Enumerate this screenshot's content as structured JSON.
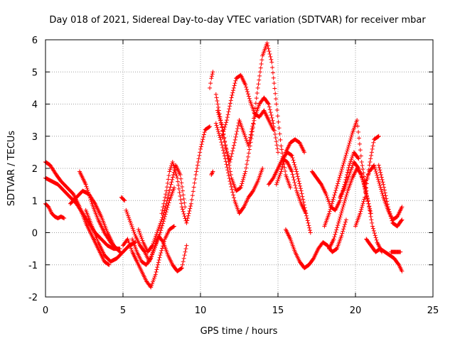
{
  "chart_data": {
    "type": "scatter",
    "title": "Day 018 of 2021, Sidereal Day-to-day VTEC variation (SDTVAR) for receiver mbar",
    "xlabel": "GPS time / hours",
    "ylabel": "SDTVAR / TECUs",
    "xlim": [
      0,
      25
    ],
    "ylim": [
      -2,
      6
    ],
    "xticks": [
      0,
      5,
      10,
      15,
      20,
      25
    ],
    "xtick_labels": [
      "0",
      "5",
      "10",
      "15",
      "20",
      "25"
    ],
    "yticks": [
      -2,
      -1,
      0,
      1,
      2,
      3,
      4,
      5,
      6
    ],
    "ytick_labels": [
      "-2",
      "-1",
      "0",
      "1",
      "2",
      "3",
      "4",
      "5",
      "6"
    ],
    "grid": true,
    "legend": "none",
    "marker": "+",
    "marker_color": "#ff0000",
    "series": [
      {
        "name": "track-01",
        "x": [
          0.0,
          0.3,
          0.7,
          1.0,
          1.4,
          1.8,
          2.2,
          2.6,
          3.0,
          3.4,
          3.8,
          4.1
        ],
        "y": [
          2.2,
          2.1,
          1.8,
          1.6,
          1.4,
          1.2,
          0.8,
          0.3,
          -0.1,
          -0.5,
          -0.9,
          -1.0
        ]
      },
      {
        "name": "track-02",
        "x": [
          0.0,
          0.2,
          0.4,
          0.6,
          0.8,
          1.0,
          1.2
        ],
        "y": [
          0.9,
          0.8,
          0.6,
          0.5,
          0.45,
          0.5,
          0.45
        ]
      },
      {
        "name": "track-03",
        "x": [
          0.0,
          0.4,
          0.8,
          1.2,
          1.6,
          2.0,
          2.4,
          2.8,
          3.2,
          3.6,
          4.0,
          4.4,
          4.8
        ],
        "y": [
          1.7,
          1.6,
          1.5,
          1.3,
          1.1,
          0.9,
          0.6,
          0.3,
          0.0,
          -0.2,
          -0.4,
          -0.5,
          -0.5
        ]
      },
      {
        "name": "track-04",
        "x": [
          1.6,
          2.0,
          2.4,
          2.8,
          3.2,
          3.6,
          4.0,
          4.4,
          4.8
        ],
        "y": [
          0.9,
          1.1,
          1.3,
          1.2,
          0.9,
          0.5,
          0.0,
          -0.4,
          -0.6
        ]
      },
      {
        "name": "track-05",
        "x": [
          2.2,
          2.6,
          3.0,
          3.4,
          3.8,
          4.2,
          4.6
        ],
        "y": [
          1.9,
          1.5,
          0.9,
          0.4,
          0.0,
          -0.3,
          -0.5
        ]
      },
      {
        "name": "track-06",
        "x": [
          2.6,
          3.0,
          3.4,
          3.8,
          4.2,
          4.6,
          5.0,
          5.4,
          5.8
        ],
        "y": [
          0.7,
          0.2,
          -0.3,
          -0.7,
          -0.9,
          -0.8,
          -0.6,
          -0.4,
          -0.3
        ]
      },
      {
        "name": "track-07",
        "x": [
          4.9,
          5.1
        ],
        "y": [
          1.1,
          1.0
        ]
      },
      {
        "name": "track-08",
        "x": [
          5.0,
          5.3,
          5.6,
          5.9,
          6.2,
          6.5,
          6.8,
          7.1,
          7.4,
          7.7,
          8.0,
          8.3
        ],
        "y": [
          -0.4,
          -0.2,
          -0.6,
          -0.9,
          -1.2,
          -1.5,
          -1.7,
          -1.3,
          -0.7,
          -0.2,
          0.1,
          0.2
        ]
      },
      {
        "name": "track-09",
        "x": [
          5.2,
          5.5,
          5.8,
          6.1,
          6.4,
          6.7,
          7.0,
          7.3,
          7.6,
          7.9,
          8.2,
          8.5,
          8.8,
          9.1
        ],
        "y": [
          0.7,
          0.3,
          -0.1,
          -0.4,
          -0.6,
          -0.9,
          -0.5,
          -0.1,
          -0.3,
          -0.7,
          -1.0,
          -1.2,
          -1.1,
          -0.4
        ]
      },
      {
        "name": "track-10",
        "x": [
          5.6,
          5.9,
          6.2,
          6.5,
          6.8,
          7.1,
          7.4,
          7.7,
          8.0,
          8.3
        ],
        "y": [
          -0.2,
          -0.6,
          -0.9,
          -1.0,
          -0.8,
          -0.4,
          0.0,
          0.5,
          1.0,
          1.4
        ]
      },
      {
        "name": "track-11",
        "x": [
          6.0,
          6.3,
          6.6,
          6.9,
          7.2,
          7.5,
          7.8,
          8.1,
          8.4,
          8.7,
          9.0
        ],
        "y": [
          0.1,
          -0.3,
          -0.6,
          -0.4,
          0.0,
          0.4,
          0.9,
          1.5,
          2.1,
          1.8,
          0.8
        ]
      },
      {
        "name": "track-12",
        "x": [
          7.5,
          7.8,
          8.0,
          8.2,
          8.5,
          8.8,
          9.1,
          9.4,
          9.7,
          10.0,
          10.3,
          10.6
        ],
        "y": [
          0.6,
          1.3,
          1.9,
          2.2,
          1.7,
          0.8,
          0.3,
          0.9,
          1.8,
          2.6,
          3.2,
          3.3
        ]
      },
      {
        "name": "track-13",
        "x": [
          10.6,
          10.7,
          10.8
        ],
        "y": [
          4.5,
          4.8,
          5.0
        ]
      },
      {
        "name": "track-14",
        "x": [
          10.7,
          10.8
        ],
        "y": [
          1.8,
          1.9
        ]
      },
      {
        "name": "track-15",
        "x": [
          11.0,
          11.3,
          11.6,
          11.9,
          12.2,
          12.5,
          12.8,
          13.1,
          13.4,
          13.7,
          14.0,
          14.3,
          14.6,
          14.9,
          15.2,
          15.5,
          15.8
        ],
        "y": [
          4.3,
          3.5,
          2.7,
          2.2,
          2.8,
          3.5,
          3.1,
          2.7,
          3.4,
          4.5,
          5.5,
          5.9,
          5.3,
          4.0,
          2.7,
          1.8,
          1.4
        ]
      },
      {
        "name": "track-16",
        "x": [
          11.0,
          11.3,
          11.6,
          11.9,
          12.2,
          12.5,
          12.8,
          13.1,
          13.4,
          13.7,
          14.0
        ],
        "y": [
          3.4,
          2.9,
          2.3,
          1.6,
          1.0,
          0.6,
          0.8,
          1.1,
          1.3,
          1.6,
          2.0
        ]
      },
      {
        "name": "track-17",
        "x": [
          11.1,
          11.4,
          11.7,
          12.0,
          12.3,
          12.6,
          12.9,
          13.2,
          13.5,
          13.8,
          14.1,
          14.4,
          14.7,
          15.0
        ],
        "y": [
          3.8,
          3.3,
          2.5,
          1.7,
          1.3,
          1.4,
          1.9,
          2.7,
          3.6,
          4.0,
          4.2,
          4.0,
          3.4,
          2.5
        ]
      },
      {
        "name": "track-18",
        "x": [
          11.4,
          11.7,
          12.0,
          12.3,
          12.6,
          12.9,
          13.2,
          13.5,
          13.8,
          14.1,
          14.4,
          14.7
        ],
        "y": [
          3.0,
          3.5,
          4.2,
          4.8,
          4.9,
          4.6,
          4.1,
          3.7,
          3.6,
          3.8,
          3.5,
          3.2
        ]
      },
      {
        "name": "track-19",
        "x": [
          14.4,
          14.7,
          15.0,
          15.3,
          15.6,
          15.9,
          16.2,
          16.5,
          16.8
        ],
        "y": [
          1.5,
          1.7,
          2.0,
          2.3,
          2.2,
          1.9,
          1.3,
          0.9,
          0.6
        ]
      },
      {
        "name": "track-20",
        "x": [
          14.9,
          15.2,
          15.5,
          15.8,
          16.1,
          16.4,
          16.7
        ],
        "y": [
          1.5,
          1.9,
          2.5,
          2.8,
          2.9,
          2.8,
          2.5
        ]
      },
      {
        "name": "track-21",
        "x": [
          15.3,
          15.6,
          15.9,
          16.2,
          16.5,
          16.8,
          17.1
        ],
        "y": [
          2.3,
          2.5,
          2.4,
          1.9,
          1.3,
          0.6,
          0.0
        ]
      },
      {
        "name": "track-22",
        "x": [
          15.5,
          15.8,
          16.1,
          16.4,
          16.7,
          17.0,
          17.3,
          17.6,
          17.9,
          18.2,
          18.5,
          18.8,
          19.1,
          19.4
        ],
        "y": [
          0.1,
          -0.2,
          -0.6,
          -0.9,
          -1.1,
          -1.0,
          -0.8,
          -0.5,
          -0.3,
          -0.4,
          -0.6,
          -0.5,
          -0.1,
          0.4
        ]
      },
      {
        "name": "track-23",
        "x": [
          17.2,
          17.5,
          17.8,
          18.1,
          18.4,
          18.7,
          19.0,
          19.3,
          19.6,
          19.9,
          20.2
        ],
        "y": [
          1.9,
          1.7,
          1.5,
          1.2,
          0.8,
          0.7,
          1.0,
          1.5,
          2.1,
          2.5,
          2.3
        ]
      },
      {
        "name": "track-24",
        "x": [
          18.0,
          18.3,
          18.6,
          18.9,
          19.2,
          19.5,
          19.8,
          20.1,
          20.4,
          20.7
        ],
        "y": [
          0.2,
          0.6,
          1.1,
          1.6,
          2.1,
          2.6,
          3.1,
          3.5,
          2.2,
          1.3
        ]
      },
      {
        "name": "track-25",
        "x": [
          18.3,
          18.6,
          18.9,
          19.2,
          19.5,
          19.8,
          20.1,
          20.4,
          20.7,
          21.0
        ],
        "y": [
          -0.5,
          -0.2,
          0.3,
          0.8,
          1.3,
          1.7,
          2.0,
          1.8,
          1.2,
          0.6
        ]
      },
      {
        "name": "track-26",
        "x": [
          19.0,
          19.3,
          19.6,
          19.9,
          20.2,
          20.5,
          20.8,
          21.1,
          21.4,
          21.7
        ],
        "y": [
          1.1,
          1.4,
          1.8,
          2.2,
          2.0,
          1.6,
          1.0,
          0.2,
          -0.3,
          -0.6
        ]
      },
      {
        "name": "track-27",
        "x": [
          20.0,
          20.3,
          20.6,
          20.9,
          21.2,
          21.5
        ],
        "y": [
          0.2,
          0.6,
          1.1,
          2.1,
          2.9,
          3.0
        ]
      },
      {
        "name": "track-28",
        "x": [
          20.6,
          20.9,
          21.2,
          21.5,
          21.8,
          22.1,
          22.4,
          22.7,
          23.0
        ],
        "y": [
          1.5,
          1.9,
          2.1,
          1.6,
          1.1,
          0.7,
          0.4,
          0.5,
          0.8
        ]
      },
      {
        "name": "track-29",
        "x": [
          21.5,
          21.8,
          22.1,
          22.4,
          22.7,
          23.0
        ],
        "y": [
          2.1,
          1.5,
          0.8,
          0.3,
          0.2,
          0.4
        ]
      },
      {
        "name": "track-30",
        "x": [
          20.7,
          21.0,
          21.3,
          21.6,
          21.9,
          22.2,
          22.5,
          22.8,
          23.0
        ],
        "y": [
          -0.2,
          -0.4,
          -0.6,
          -0.5,
          -0.6,
          -0.7,
          -0.8,
          -1.0,
          -1.2
        ]
      },
      {
        "name": "track-31",
        "x": [
          22.3,
          22.6,
          22.9
        ],
        "y": [
          -0.6,
          -0.6,
          -0.6
        ]
      }
    ]
  }
}
